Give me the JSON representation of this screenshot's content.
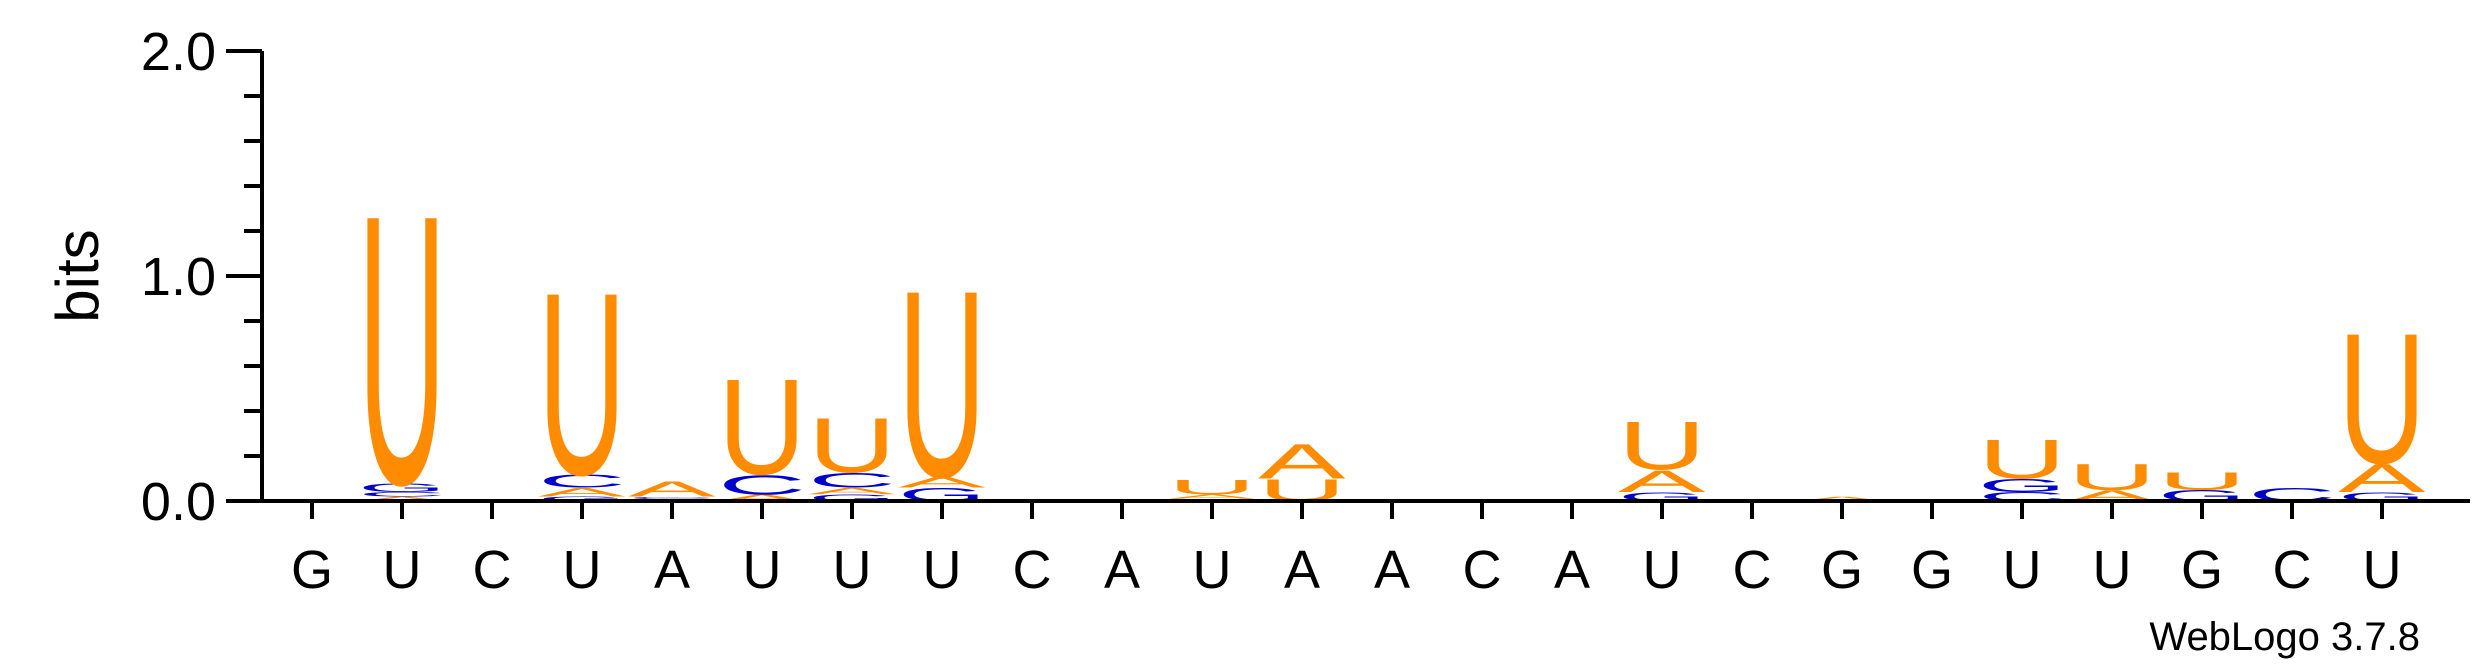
{
  "chart_data": {
    "type": "sequence-logo",
    "ylabel": "bits",
    "ylim": [
      0,
      2.0
    ],
    "yticks": [
      "0.0",
      "1.0",
      "2.0"
    ],
    "colors": {
      "U": "#ff8c00",
      "A": "#ff8c00",
      "C": "#0000cc",
      "G": "#0000cc"
    },
    "credit": "WebLogo 3.7.8",
    "x_labels": [
      "G",
      "U",
      "C",
      "U",
      "A",
      "U",
      "U",
      "U",
      "C",
      "A",
      "U",
      "A",
      "A",
      "C",
      "A",
      "U",
      "C",
      "G",
      "G",
      "U",
      "U",
      "G",
      "C",
      "U"
    ],
    "positions": [
      {
        "stack": []
      },
      {
        "stack": [
          {
            "l": "A",
            "h": 0.02
          },
          {
            "l": "C",
            "h": 0.02
          },
          {
            "l": "G",
            "h": 0.04
          },
          {
            "l": "U",
            "h": 1.24
          }
        ]
      },
      {
        "stack": []
      },
      {
        "stack": [
          {
            "l": "G",
            "h": 0.02
          },
          {
            "l": "A",
            "h": 0.04
          },
          {
            "l": "C",
            "h": 0.06
          },
          {
            "l": "U",
            "h": 0.84
          }
        ]
      },
      {
        "stack": [
          {
            "l": "G",
            "h": 0.01
          },
          {
            "l": "C",
            "h": 0.01
          },
          {
            "l": "A",
            "h": 0.07
          }
        ]
      },
      {
        "stack": [
          {
            "l": "A",
            "h": 0.03
          },
          {
            "l": "C",
            "h": 0.09
          },
          {
            "l": "U",
            "h": 0.44
          }
        ]
      },
      {
        "stack": [
          {
            "l": "G",
            "h": 0.03
          },
          {
            "l": "A",
            "h": 0.03
          },
          {
            "l": "C",
            "h": 0.07
          },
          {
            "l": "U",
            "h": 0.25
          }
        ]
      },
      {
        "stack": [
          {
            "l": "G",
            "h": 0.06
          },
          {
            "l": "A",
            "h": 0.05
          },
          {
            "l": "U",
            "h": 0.86
          }
        ]
      },
      {
        "stack": []
      },
      {
        "stack": []
      },
      {
        "stack": [
          {
            "l": "C",
            "h": 0.01
          },
          {
            "l": "A",
            "h": 0.02
          },
          {
            "l": "U",
            "h": 0.07
          }
        ]
      },
      {
        "stack": [
          {
            "l": "U",
            "h": 0.1
          },
          {
            "l": "A",
            "h": 0.16
          }
        ]
      },
      {
        "stack": []
      },
      {
        "stack": []
      },
      {
        "stack": []
      },
      {
        "stack": [
          {
            "l": "G",
            "h": 0.04
          },
          {
            "l": "A",
            "h": 0.1
          },
          {
            "l": "U",
            "h": 0.22
          }
        ]
      },
      {
        "stack": []
      },
      {
        "stack": [
          {
            "l": "A",
            "h": 0.02
          }
        ]
      },
      {
        "stack": [
          {
            "l": "G",
            "h": 0.01
          }
        ]
      },
      {
        "stack": [
          {
            "l": "C",
            "h": 0.04
          },
          {
            "l": "G",
            "h": 0.06
          },
          {
            "l": "U",
            "h": 0.18
          }
        ]
      },
      {
        "stack": [
          {
            "l": "A",
            "h": 0.05
          },
          {
            "l": "U",
            "h": 0.12
          }
        ]
      },
      {
        "stack": [
          {
            "l": "G",
            "h": 0.05
          },
          {
            "l": "U",
            "h": 0.08
          }
        ]
      },
      {
        "stack": [
          {
            "l": "C",
            "h": 0.06
          }
        ]
      },
      {
        "stack": [
          {
            "l": "G",
            "h": 0.04
          },
          {
            "l": "A",
            "h": 0.13
          },
          {
            "l": "U",
            "h": 0.6
          }
        ]
      }
    ]
  }
}
